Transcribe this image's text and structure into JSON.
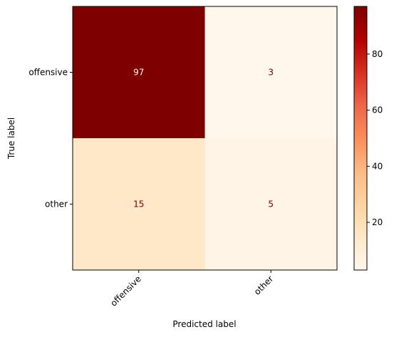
{
  "chart_data": {
    "type": "heatmap",
    "x_categories": [
      "offensive",
      "other"
    ],
    "y_categories": [
      "offensive",
      "other"
    ],
    "values": [
      [
        97,
        3
      ],
      [
        15,
        5
      ]
    ],
    "xlabel": "Predicted label",
    "ylabel": "True label",
    "colormap": "OrRd",
    "colorbar": {
      "min": 3,
      "max": 97,
      "ticks": [
        20,
        40,
        60,
        80
      ]
    },
    "colors": {
      "high": "#7f0000",
      "low": "#fff7ec",
      "text_on_dark": "#fff7ec",
      "text_on_light": "#7f0000"
    }
  }
}
